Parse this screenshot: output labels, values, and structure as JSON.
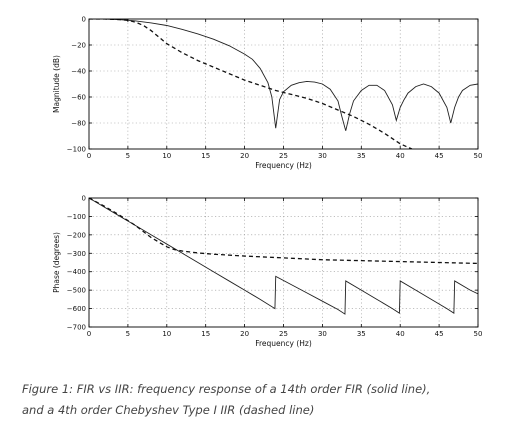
{
  "caption": {
    "line1": "Figure 1: FIR vs IIR: frequency response of a 14th order FIR (solid line),",
    "line2": "and a 4th order Chebyshev Type I IIR (dashed line)"
  },
  "chart_data": [
    {
      "type": "line",
      "title": "",
      "xlabel": "Frequency (Hz)",
      "ylabel": "Magnitude (dB)",
      "xlim": [
        0,
        50
      ],
      "ylim": [
        -100,
        0
      ],
      "xticks": [
        0,
        5,
        10,
        15,
        20,
        25,
        30,
        35,
        40,
        45,
        50
      ],
      "yticks": [
        0,
        -20,
        -40,
        -60,
        -80,
        -100
      ],
      "grid": true,
      "series": [
        {
          "style": "solid",
          "x": [
            0,
            2,
            4,
            6,
            8,
            10,
            12,
            14,
            16,
            18,
            20,
            21,
            22,
            23,
            23.5,
            24,
            24.5,
            25,
            26,
            27,
            28,
            29,
            30,
            31,
            32,
            32.5,
            33,
            33.5,
            34,
            35,
            36,
            37,
            38,
            39,
            39.5,
            40,
            40.5,
            41,
            42,
            43,
            44,
            45,
            46,
            46.5,
            47,
            47.5,
            48,
            49,
            50
          ],
          "y": [
            0,
            0,
            -0.5,
            -1.5,
            -3,
            -5,
            -8,
            -11.5,
            -15.5,
            -20.5,
            -27,
            -31,
            -38,
            -49,
            -60,
            -84,
            -62,
            -56,
            -51,
            -49,
            -48,
            -48.5,
            -50,
            -54,
            -63,
            -75,
            -86,
            -73,
            -63,
            -55,
            -51,
            -51,
            -55,
            -66,
            -78,
            -68,
            -62,
            -57,
            -52,
            -50,
            -52,
            -57,
            -68,
            -80,
            -68,
            -60,
            -55,
            -51,
            -50
          ]
        },
        {
          "style": "dashed",
          "x": [
            0,
            2,
            4,
            5,
            6,
            7,
            8,
            9,
            10,
            12,
            14,
            16,
            18,
            20,
            22,
            24,
            26,
            28,
            30,
            32,
            34,
            36,
            38,
            40,
            41.5
          ],
          "y": [
            0,
            0,
            -0.5,
            -1,
            -2.5,
            -5,
            -9,
            -14,
            -19,
            -26,
            -32,
            -37,
            -42,
            -47,
            -51,
            -55,
            -58,
            -61,
            -65,
            -70,
            -75,
            -81,
            -88,
            -96,
            -100
          ]
        }
      ]
    },
    {
      "type": "line",
      "title": "",
      "xlabel": "Frequency (Hz)",
      "ylabel": "Phase (degrees)",
      "xlim": [
        0,
        50
      ],
      "ylim": [
        -700,
        0
      ],
      "xticks": [
        0,
        5,
        10,
        15,
        20,
        25,
        30,
        35,
        40,
        45,
        50
      ],
      "yticks": [
        0,
        -100,
        -200,
        -300,
        -400,
        -500,
        -600,
        -700
      ],
      "grid": true,
      "series": [
        {
          "style": "solid",
          "x": [
            0,
            2,
            4,
            6,
            8,
            10,
            12,
            14,
            16,
            18,
            20,
            22,
            23.9,
            24,
            26,
            28,
            30,
            32,
            32.9,
            33,
            35,
            37,
            39,
            39.9,
            40,
            42,
            44,
            46,
            46.9,
            47,
            49,
            50
          ],
          "y": [
            0,
            -50,
            -100,
            -150,
            -200,
            -250,
            -300,
            -350,
            -400,
            -450,
            -500,
            -550,
            -600,
            -425,
            -470,
            -515,
            -560,
            -605,
            -630,
            -450,
            -500,
            -550,
            -600,
            -625,
            -450,
            -500,
            -550,
            -600,
            -625,
            -450,
            -500,
            -520
          ]
        },
        {
          "style": "dashed",
          "x": [
            0,
            2,
            4,
            6,
            8,
            10,
            11,
            12,
            14,
            16,
            18,
            20,
            25,
            30,
            35,
            40,
            45,
            50
          ],
          "y": [
            0,
            -45,
            -95,
            -150,
            -215,
            -265,
            -280,
            -288,
            -298,
            -305,
            -310,
            -315,
            -325,
            -335,
            -340,
            -345,
            -350,
            -355
          ]
        }
      ]
    }
  ]
}
